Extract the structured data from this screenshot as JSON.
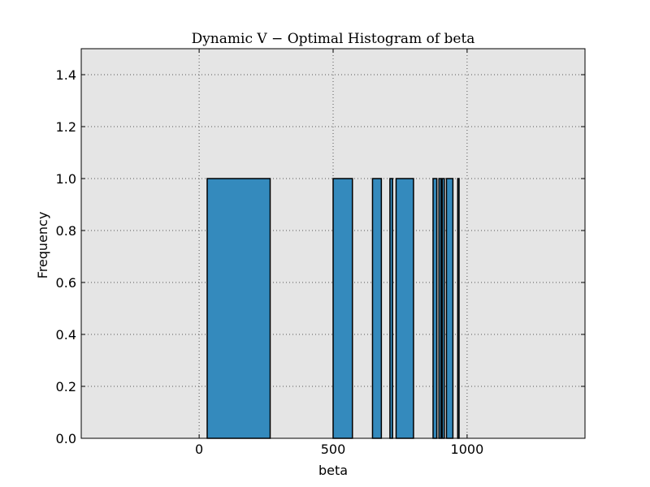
{
  "chart_data": {
    "type": "bar",
    "title": "Dynamic V − Optimal Histogram of beta",
    "xlabel": "beta",
    "ylabel": "Frequency",
    "xlim": [
      -440,
      1440
    ],
    "ylim": [
      0,
      1.5
    ],
    "xticks": [
      0,
      500,
      1000
    ],
    "xtick_labels": [
      "0",
      "500",
      "1000"
    ],
    "yticks": [
      0.0,
      0.2,
      0.4,
      0.6,
      0.8,
      1.0,
      1.2,
      1.4
    ],
    "ytick_labels": [
      "0.0",
      "0.2",
      "0.4",
      "0.6",
      "0.8",
      "1.0",
      "1.2",
      "1.4"
    ],
    "grid": true,
    "bins": [
      {
        "x0": 30,
        "x1": 265,
        "value": 1.0
      },
      {
        "x0": 500,
        "x1": 572,
        "value": 1.0
      },
      {
        "x0": 647,
        "x1": 680,
        "value": 1.0
      },
      {
        "x0": 712,
        "x1": 722,
        "value": 1.0
      },
      {
        "x0": 735,
        "x1": 800,
        "value": 1.0
      },
      {
        "x0": 873,
        "x1": 887,
        "value": 1.0
      },
      {
        "x0": 895,
        "x1": 903,
        "value": 1.0
      },
      {
        "x0": 907,
        "x1": 915,
        "value": 1.0
      },
      {
        "x0": 923,
        "x1": 947,
        "value": 1.0
      },
      {
        "x0": 965,
        "x1": 970,
        "value": 1.0
      }
    ],
    "colors": {
      "bar_fill": "#348abd",
      "plot_background": "#e5e5e5",
      "grid": "#555555"
    }
  }
}
